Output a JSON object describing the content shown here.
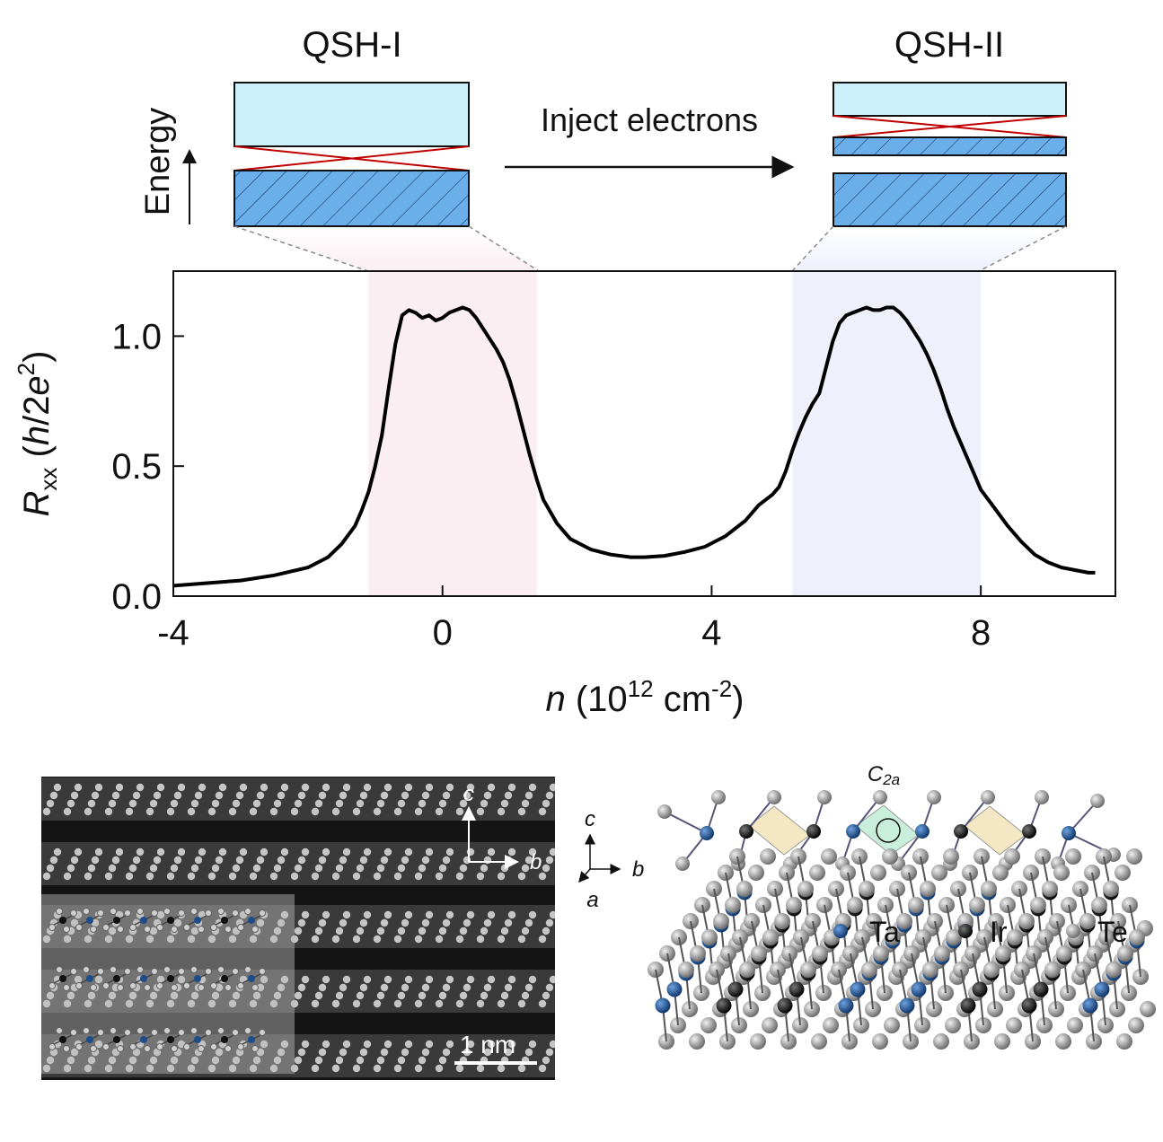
{
  "band_diagram": {
    "left_title": "QSH-I",
    "right_title": "QSH-II",
    "arrow_label": "Inject electrons",
    "energy_label": "Energy",
    "colors": {
      "conduction": "#cdf1fb",
      "valence": "#6aaeea",
      "crossing": "#c00000"
    }
  },
  "chart_data": {
    "type": "line",
    "title": "",
    "xlabel": {
      "var": "n",
      "open": " (10",
      "exp": "12",
      "unit": " cm",
      "unit_exp": "-2",
      "close": ")"
    },
    "ylabel": {
      "var": "R",
      "sub": "xx",
      "open": " (",
      "h": "h",
      "slash": "/2",
      "e": "e",
      "exp": "2",
      "close": ")"
    },
    "xlim": [
      -4,
      10
    ],
    "ylim": [
      0,
      1.25
    ],
    "xticks": [
      -4,
      0,
      4,
      8
    ],
    "xtick_labels": [
      "-4",
      "0",
      "4",
      "8"
    ],
    "yticks": [
      0,
      0.5,
      1.0
    ],
    "ytick_labels": [
      "0.0",
      "0.5",
      "1.0"
    ],
    "shaded_regions": [
      {
        "x0": -1.1,
        "x1": 1.4,
        "color": "#fbeef2"
      },
      {
        "x0": 5.2,
        "x1": 8.0,
        "color": "#eef1fc"
      }
    ],
    "series": [
      {
        "color": "#000000",
        "x": [
          -4.0,
          -3.5,
          -3.0,
          -2.5,
          -2.0,
          -1.7,
          -1.5,
          -1.3,
          -1.2,
          -1.1,
          -1.0,
          -0.9,
          -0.8,
          -0.7,
          -0.6,
          -0.5,
          -0.4,
          -0.3,
          -0.2,
          -0.1,
          0.0,
          0.1,
          0.2,
          0.3,
          0.4,
          0.5,
          0.6,
          0.7,
          0.8,
          0.9,
          1.0,
          1.1,
          1.2,
          1.3,
          1.4,
          1.5,
          1.7,
          1.9,
          2.2,
          2.5,
          2.8,
          3.0,
          3.3,
          3.6,
          3.9,
          4.2,
          4.5,
          4.7,
          4.9,
          5.0,
          5.1,
          5.2,
          5.3,
          5.4,
          5.5,
          5.6,
          5.7,
          5.8,
          5.9,
          6.0,
          6.1,
          6.2,
          6.3,
          6.4,
          6.5,
          6.6,
          6.7,
          6.8,
          6.9,
          7.0,
          7.1,
          7.2,
          7.3,
          7.4,
          7.5,
          7.6,
          7.7,
          7.8,
          7.9,
          8.0,
          8.2,
          8.4,
          8.6,
          8.8,
          9.0,
          9.2,
          9.4,
          9.6,
          9.7
        ],
        "values": [
          0.04,
          0.05,
          0.06,
          0.08,
          0.11,
          0.15,
          0.2,
          0.27,
          0.33,
          0.4,
          0.5,
          0.62,
          0.8,
          0.97,
          1.08,
          1.1,
          1.09,
          1.07,
          1.08,
          1.06,
          1.07,
          1.09,
          1.1,
          1.11,
          1.1,
          1.07,
          1.03,
          0.99,
          0.95,
          0.9,
          0.83,
          0.74,
          0.64,
          0.54,
          0.45,
          0.37,
          0.28,
          0.22,
          0.18,
          0.16,
          0.15,
          0.15,
          0.155,
          0.17,
          0.19,
          0.23,
          0.29,
          0.35,
          0.39,
          0.42,
          0.48,
          0.56,
          0.63,
          0.69,
          0.74,
          0.78,
          0.88,
          0.98,
          1.05,
          1.08,
          1.09,
          1.1,
          1.11,
          1.1,
          1.1,
          1.11,
          1.11,
          1.09,
          1.06,
          1.02,
          0.98,
          0.93,
          0.87,
          0.8,
          0.72,
          0.65,
          0.59,
          0.53,
          0.47,
          0.41,
          0.34,
          0.27,
          0.21,
          0.16,
          0.13,
          0.11,
          0.1,
          0.09,
          0.09
        ]
      }
    ]
  },
  "stem_image": {
    "axis_c": "c",
    "axis_b": "b",
    "scale_bar": "1 nm"
  },
  "crystal": {
    "symmetry_label": "C",
    "symmetry_sub": "2a",
    "axes": {
      "c": "c",
      "b": "b",
      "a": "a"
    },
    "legend": [
      {
        "label": "Ta",
        "color": "#1d4e8b",
        "icon": "atom-ta-icon"
      },
      {
        "label": "Ir",
        "color": "#111111",
        "icon": "atom-ir-icon"
      },
      {
        "label": "Te",
        "color": "#8c8c8c",
        "icon": "atom-te-icon"
      }
    ]
  }
}
